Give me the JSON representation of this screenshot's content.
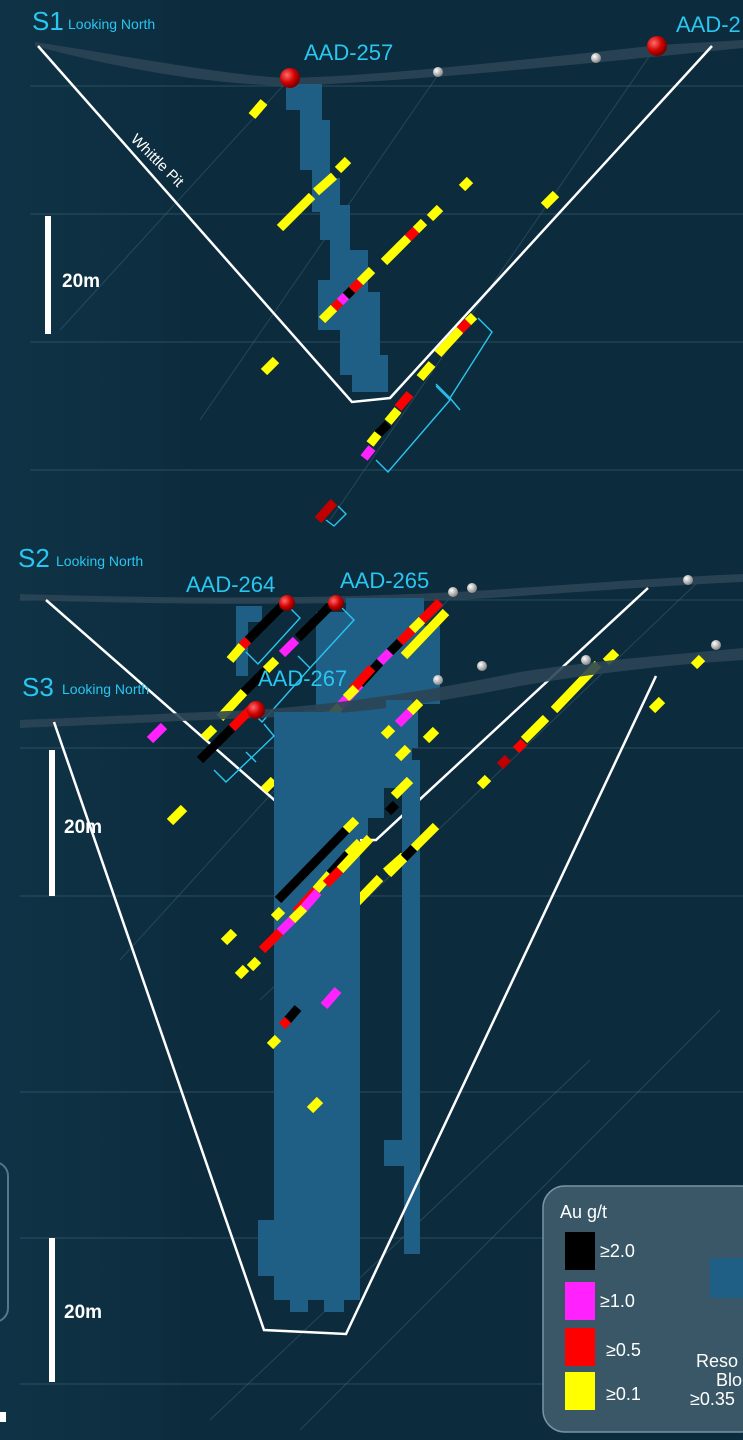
{
  "sections": [
    {
      "id": "S1",
      "subtitle": "Looking North",
      "holes": [
        "AAD-257",
        "AAD-2"
      ],
      "pit_label": "Whittle Pit",
      "scale": "20m"
    },
    {
      "id": "S2",
      "subtitle": "Looking North",
      "holes": [
        "AAD-264",
        "AAD-265"
      ],
      "scale": "20m"
    },
    {
      "id": "S3",
      "subtitle": "Looking North",
      "holes": [
        "AAD-267"
      ],
      "scale": "20m"
    }
  ],
  "legend": {
    "title": "Au g/t",
    "grades": [
      {
        "label": "≥2.0",
        "color": "#000000"
      },
      {
        "label": "≥1.0",
        "color": "#ff22ff"
      },
      {
        "label": "≥0.5",
        "color": "#ff0000"
      },
      {
        "label": "≥0.1",
        "color": "#ffff00"
      }
    ],
    "block_lines": [
      "Reso",
      "Blo",
      "≥0.35"
    ],
    "block_color": "#1f5f86"
  },
  "colors": {
    "background": "#0c2b3d",
    "label_cyan": "#29c6f0",
    "resource_block": "#1f5f86",
    "pit_outline": "#ffffff",
    "collar_red": "#c00000"
  }
}
